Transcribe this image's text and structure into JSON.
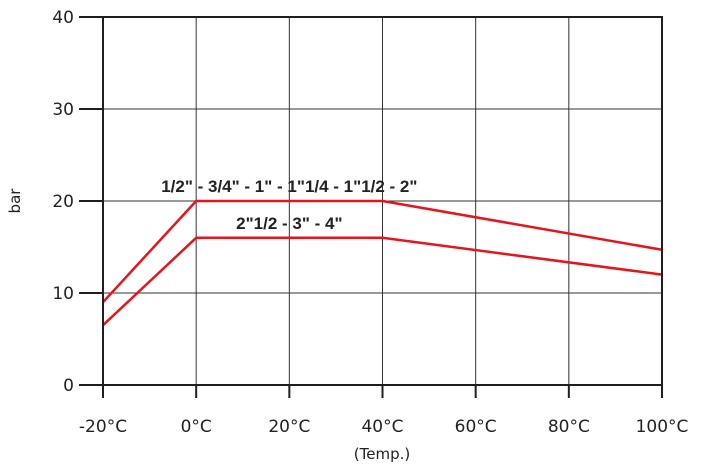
{
  "chart_data": {
    "type": "line",
    "title": "",
    "xlabel": "(Temp.)",
    "ylabel": "bar",
    "x_tick_labels": [
      "-20°C",
      "0°C",
      "20°C",
      "40°C",
      "60°C",
      "80°C",
      "100°C"
    ],
    "y_tick_labels": [
      "0",
      "10",
      "20",
      "30",
      "40"
    ],
    "xlim": [
      -20,
      100
    ],
    "ylim": [
      0,
      40
    ],
    "grid": true,
    "series": [
      {
        "name": "1/2\" - 3/4\" - 1\" - 1\"1/4 - 1\"1/2 - 2\"",
        "color": "#e8141c",
        "x": [
          -20,
          0,
          40,
          100
        ],
        "y": [
          9,
          20,
          20,
          14.7
        ]
      },
      {
        "name": "2\"1/2 - 3\" - 4\"",
        "color": "#e8141c",
        "x": [
          -20,
          0,
          40,
          100
        ],
        "y": [
          6.5,
          16,
          16,
          12
        ]
      }
    ]
  }
}
